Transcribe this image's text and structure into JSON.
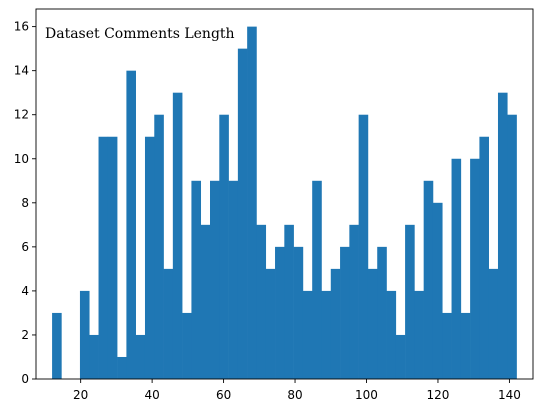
{
  "chart_data": {
    "type": "bar",
    "title": "Dataset Comments Length",
    "xlabel": "",
    "ylabel": "",
    "xlim": [
      7.5,
      146.6
    ],
    "ylim": [
      0,
      16.8
    ],
    "bin_start": 12,
    "bin_width": 2.6,
    "values": [
      3,
      0,
      0,
      4,
      2,
      11,
      11,
      1,
      14,
      2,
      11,
      12,
      5,
      13,
      3,
      9,
      7,
      9,
      12,
      9,
      15,
      16,
      7,
      5,
      6,
      7,
      6,
      4,
      9,
      4,
      5,
      6,
      7,
      12,
      5,
      6,
      4,
      2,
      7,
      4,
      9,
      8,
      3,
      10,
      3,
      10,
      11,
      5,
      13,
      12
    ],
    "xticks": [
      20,
      40,
      60,
      80,
      100,
      120,
      140
    ],
    "yticks": [
      0,
      2,
      4,
      6,
      8,
      10,
      12,
      14,
      16
    ],
    "grid": false,
    "legend": "none",
    "bar_color": "#1f77b4",
    "text_color": "#000000"
  }
}
